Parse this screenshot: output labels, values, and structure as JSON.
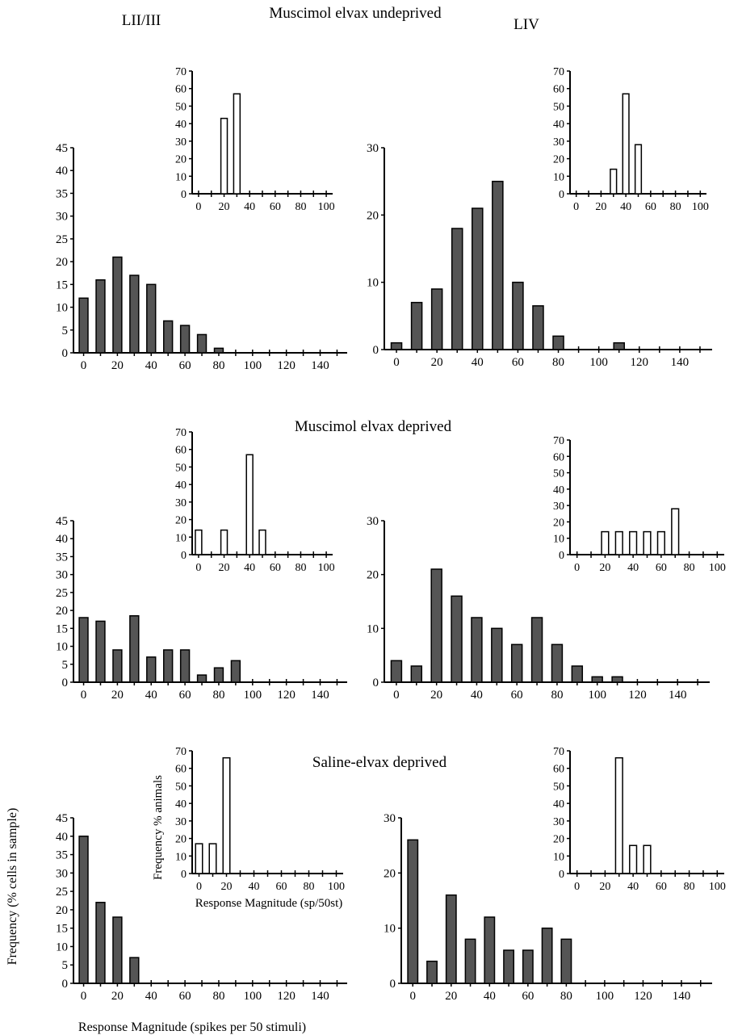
{
  "figure": {
    "column_labels": [
      "LII/III",
      "LIV"
    ],
    "section_titles": [
      "Muscimol elvax undeprived",
      "Muscimol elvax deprived",
      "Saline-elvax deprived"
    ],
    "y_label_cells": "Frequency (% cells in sample)",
    "x_label_cells": "Response Magnitude (spikes per 50 stimuli)",
    "y_label_animals": "Frequency % animals",
    "x_label_animals": "Response Magnitude (sp/50st)"
  },
  "colors": {
    "bar_fill": "#555555",
    "inset_fill": "#ffffff",
    "stroke": "#000000"
  },
  "chart_data": [
    {
      "id": "undeprived-LII-III",
      "type": "bar",
      "x": [
        0,
        10,
        20,
        30,
        40,
        50,
        60,
        70,
        80
      ],
      "values": [
        12,
        16,
        21,
        17,
        15,
        7,
        6,
        4,
        1
      ],
      "ylim": [
        0,
        45
      ],
      "xlim": [
        0,
        150
      ],
      "yticks": [
        0,
        5,
        10,
        15,
        20,
        25,
        30,
        35,
        40,
        45
      ],
      "xticks": [
        0,
        20,
        40,
        60,
        80,
        100,
        120,
        140
      ]
    },
    {
      "id": "undeprived-LII-III-inset",
      "type": "bar",
      "x": [
        20,
        30
      ],
      "values": [
        43,
        57
      ],
      "ylim": [
        0,
        70
      ],
      "xlim": [
        0,
        100
      ],
      "yticks": [
        0,
        10,
        20,
        30,
        40,
        50,
        60,
        70
      ],
      "xticks": [
        0,
        20,
        40,
        60,
        80,
        100
      ]
    },
    {
      "id": "undeprived-LIV",
      "type": "bar",
      "x": [
        0,
        10,
        20,
        30,
        40,
        50,
        60,
        70,
        80,
        110
      ],
      "values": [
        1,
        7,
        9,
        18,
        21,
        25,
        10,
        6.5,
        2,
        1
      ],
      "ylim": [
        0,
        30
      ],
      "xlim": [
        0,
        150
      ],
      "yticks": [
        0,
        10,
        20,
        30
      ],
      "xticks": [
        0,
        20,
        40,
        60,
        80,
        100,
        120,
        140
      ]
    },
    {
      "id": "undeprived-LIV-inset",
      "type": "bar",
      "x": [
        30,
        40,
        50
      ],
      "values": [
        14,
        57,
        28
      ],
      "ylim": [
        0,
        70
      ],
      "xlim": [
        0,
        100
      ],
      "yticks": [
        0,
        10,
        20,
        30,
        40,
        50,
        60,
        70
      ],
      "xticks": [
        0,
        20,
        40,
        60,
        80,
        100
      ]
    },
    {
      "id": "deprived-LII-III",
      "type": "bar",
      "x": [
        0,
        10,
        20,
        30,
        40,
        50,
        60,
        70,
        80,
        90
      ],
      "values": [
        18,
        17,
        9,
        18.5,
        7,
        9,
        9,
        2,
        4,
        6
      ],
      "ylim": [
        0,
        45
      ],
      "xlim": [
        0,
        150
      ],
      "yticks": [
        0,
        5,
        10,
        15,
        20,
        25,
        30,
        35,
        40,
        45
      ],
      "xticks": [
        0,
        20,
        40,
        60,
        80,
        100,
        120,
        140
      ]
    },
    {
      "id": "deprived-LII-III-inset",
      "type": "bar",
      "x": [
        0,
        20,
        40,
        50
      ],
      "values": [
        14,
        14,
        57,
        14
      ],
      "ylim": [
        0,
        70
      ],
      "xlim": [
        0,
        100
      ],
      "yticks": [
        0,
        10,
        20,
        30,
        40,
        50,
        60,
        70
      ],
      "xticks": [
        0,
        20,
        40,
        60,
        80,
        100
      ]
    },
    {
      "id": "deprived-LIV",
      "type": "bar",
      "x": [
        0,
        10,
        20,
        30,
        40,
        50,
        60,
        70,
        80,
        90,
        100,
        110
      ],
      "values": [
        4,
        3,
        21,
        16,
        12,
        10,
        7,
        12,
        7,
        3,
        1,
        1
      ],
      "ylim": [
        0,
        30
      ],
      "xlim": [
        0,
        150
      ],
      "yticks": [
        0,
        10,
        20,
        30
      ],
      "xticks": [
        0,
        20,
        40,
        60,
        80,
        100,
        120,
        140
      ]
    },
    {
      "id": "deprived-LIV-inset",
      "type": "bar",
      "x": [
        20,
        30,
        40,
        50,
        60,
        70
      ],
      "values": [
        14,
        14,
        14,
        14,
        14,
        28
      ],
      "ylim": [
        0,
        70
      ],
      "xlim": [
        0,
        100
      ],
      "yticks": [
        0,
        10,
        20,
        30,
        40,
        50,
        60,
        70
      ],
      "xticks": [
        0,
        20,
        40,
        60,
        80,
        100
      ]
    },
    {
      "id": "saline-LII-III",
      "type": "bar",
      "x": [
        0,
        10,
        20,
        30
      ],
      "values": [
        40,
        22,
        18,
        7
      ],
      "ylim": [
        0,
        45
      ],
      "xlim": [
        0,
        150
      ],
      "yticks": [
        0,
        5,
        10,
        15,
        20,
        25,
        30,
        35,
        40,
        45
      ],
      "xticks": [
        0,
        20,
        40,
        60,
        80,
        100,
        120,
        140
      ]
    },
    {
      "id": "saline-LII-III-inset",
      "type": "bar",
      "x": [
        0,
        10,
        20
      ],
      "values": [
        17,
        17,
        66
      ],
      "ylim": [
        0,
        70
      ],
      "xlim": [
        0,
        100
      ],
      "yticks": [
        0,
        10,
        20,
        30,
        40,
        50,
        60,
        70
      ],
      "xticks": [
        0,
        20,
        40,
        60,
        80,
        100
      ]
    },
    {
      "id": "saline-LIV",
      "type": "bar",
      "x": [
        0,
        10,
        20,
        30,
        40,
        50,
        60,
        70,
        80
      ],
      "values": [
        26,
        4,
        16,
        8,
        12,
        6,
        6,
        10,
        8
      ],
      "ylim": [
        0,
        30
      ],
      "xlim": [
        0,
        150
      ],
      "yticks": [
        0,
        10,
        20,
        30
      ],
      "xticks": [
        0,
        20,
        40,
        60,
        80,
        100,
        120,
        140
      ]
    },
    {
      "id": "saline-LIV-inset",
      "type": "bar",
      "x": [
        30,
        40,
        50
      ],
      "values": [
        66,
        16,
        16
      ],
      "ylim": [
        0,
        70
      ],
      "xlim": [
        0,
        100
      ],
      "yticks": [
        0,
        10,
        20,
        30,
        40,
        50,
        60,
        70
      ],
      "xticks": [
        0,
        20,
        40,
        60,
        80,
        100
      ]
    }
  ]
}
